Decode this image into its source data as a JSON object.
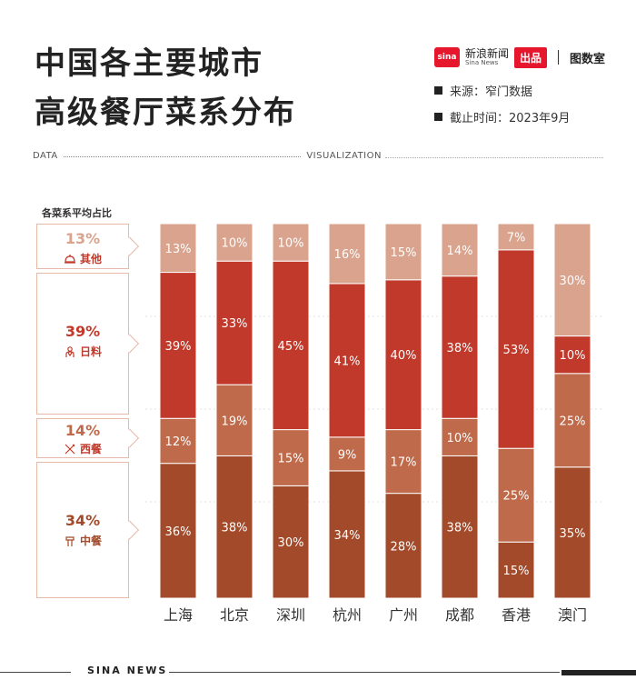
{
  "header": {
    "title_line1": "中国各主要城市",
    "title_line2": "高级餐厅菜系分布",
    "sina_brand": "新浪新闻",
    "sina_sub": "Sina News",
    "sina_logo_text": "sina",
    "chupin": "出品",
    "tushuo": "图数室",
    "source": "来源：窄门数据",
    "cutoff": "截止时间：2023年9月"
  },
  "section": {
    "left": "DATA",
    "right": "VISUALIZATION"
  },
  "legend": {
    "title": "各菜系平均占比",
    "items": [
      {
        "pct": "13%",
        "label": "其他",
        "color": "#d9a38e",
        "icon": "cloche-icon"
      },
      {
        "pct": "39%",
        "label": "日料",
        "color": "#c0392b",
        "icon": "sushi-chef-icon"
      },
      {
        "pct": "14%",
        "label": "西餐",
        "color": "#bf6a4a",
        "icon": "fork-knife-icon"
      },
      {
        "pct": "34%",
        "label": "中餐",
        "color": "#a24a2a",
        "icon": "chopsticks-icon"
      }
    ]
  },
  "chart_data": {
    "type": "bar",
    "stacked": true,
    "normalized": true,
    "title": "中国各主要城市高级餐厅菜系分布",
    "categories": [
      "上海",
      "北京",
      "深圳",
      "杭州",
      "广州",
      "成都",
      "香港",
      "澳门"
    ],
    "series": [
      {
        "name": "中餐",
        "color": "#a24a2a",
        "values": [
          36,
          38,
          30,
          34,
          28,
          38,
          15,
          35
        ]
      },
      {
        "name": "西餐",
        "color": "#bf6a4a",
        "values": [
          12,
          19,
          15,
          9,
          17,
          10,
          25,
          25
        ]
      },
      {
        "name": "日料",
        "color": "#c0392b",
        "values": [
          39,
          33,
          45,
          41,
          40,
          38,
          53,
          10
        ]
      },
      {
        "name": "其他",
        "color": "#d9a38e",
        "values": [
          13,
          10,
          10,
          16,
          15,
          14,
          7,
          30
        ]
      }
    ],
    "ylim": [
      0,
      100
    ],
    "value_suffix": "%"
  },
  "footer": {
    "text": "SINA NEWS"
  }
}
